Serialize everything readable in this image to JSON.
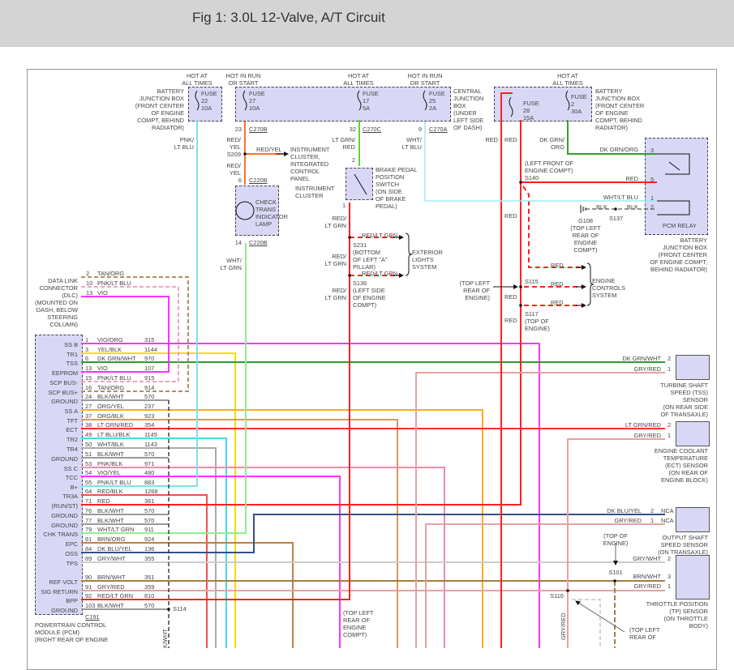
{
  "title": "Fig 1: 3.0L 12-Valve, A/T Circuit",
  "top": {
    "hot1": "HOT AT\nALL TIMES",
    "run1": "HOT IN RUN\nOR START",
    "hot2": "HOT AT\nALL TIMES",
    "run2": "HOT IN RUN\nOR START",
    "hot3": "HOT AT\nALL TIMES",
    "bjb_left": "BATTERY\nJUNCTION BOX\n(FRONT CENTER\nOF ENGINE\nCOMPT, BEHIND\nRADIATOR)",
    "fuse22": "FUSE\n22\n10A",
    "fuse27": "FUSE\n27\n10A",
    "fuse17": "FUSE\n17\n5A",
    "fuse25": "FUSE\n25\n2A",
    "fuse28": "FUSE\n28\n15A",
    "fuse2": "FUSE\n2\n30A",
    "cjb": "CENTRAL\nJUNCTION\nBOX\n(UNDER\nLEFT SIDE\nOF DASH)",
    "bjb_right": "BATTERY\nJUNCTION BOX\n(FRONT CENTER\nOF ENGINE\nCOMPT, BEHIND\nRADIATOR)"
  },
  "cluster": {
    "pin23": "23",
    "c270b": "C270B",
    "pnk_ltblu": "PNK/\nLT BLU",
    "redyel1": "RED/\nYEL",
    "s209": "S209",
    "redyel_h": "RED/YEL",
    "redyel2": "RED/\nYEL",
    "icp": "INSTRUMENT\nCLUSTER,\nINTEGRATED\nCONTROL\nPANEL",
    "pin6": "6",
    "c220b_1": "C220B",
    "ic": "INSTRUMENT\nCLUSTER",
    "lamp": "CHECK\nTRANS\nINDICATOR\nLAMP",
    "pin14": "14",
    "c220b_2": "C220B",
    "wht_ltgrn": "WHT/\nLT GRN"
  },
  "brake": {
    "pin32": "32",
    "c270c": "C270C",
    "ltgrn_red": "LT GRN/\nRED",
    "pin2": "2",
    "switch": "BRAKE PEDAL\nPOSITION\nSWITCH\n(ON SIDE\nOF BRAKE\nPEDAL)",
    "pin1": "1",
    "red_ltgrn1": "RED/\nLT GRN",
    "red_ltgrn_h1": "RED/LT GRN",
    "s231": "S231\n(BOTTOM\nOF LEFT \"A\"\nPILLAR)",
    "red_ltgrn2": "RED/\nLT GRN",
    "ext": "EXTERIOR\nLIGHTS\nSYSTEM",
    "red_ltgrn_h2": "RED/LT GRN",
    "s136": "S136\n(LEFT SIDE\nOF ENGINE\nCOMPT)",
    "red_ltgrn3": "RED/\nLT GRN"
  },
  "relay": {
    "pin9": "9",
    "c270a": "C270A",
    "wht_ltblu": "WHT/\nLT BLU",
    "red_a": "RED",
    "red_b": "RED",
    "dkgrn_org": "DK GRN/\nORG",
    "s140": "(LEFT FRONT OF\nENGINE COMPT)\nS140",
    "dkgrn_org_h": "DK GRN/ORG",
    "p3": "3",
    "red_h": "RED",
    "p5": "5",
    "red_c": "RED",
    "wht_ltblu_h": "WHT/LT BLU",
    "p1": "1",
    "blk1": "BLK",
    "blk2": "BLK",
    "p2": "2",
    "g108": "G108\n(TOP LEFT\nREAR OF\nENGINE\nCOMPT)",
    "s137": "S137",
    "pcm_relay": "PCM RELAY",
    "bjb": "BATTERY\nJUNCTION BOX\n(FRONT CENTER\nOF ENGINE COMPT,\nBEHIND RADIATOR)",
    "red_d": "RED",
    "tlr": "(TOP LEFT\nREAR OF\nENGINE)",
    "s115": "S115",
    "red_e": "RED",
    "ecs": "ENGINE\nCONTROLS\nSYSTEM",
    "red_f": "RED",
    "red_g": "RED",
    "s117": "S117\n(TOP OF\nENGINE)",
    "red_h2": "RED"
  },
  "sensors": {
    "tss_w2": "DK GRN/WHT",
    "tss_p2": "2",
    "tss_w1": "GRY/RED",
    "tss_p1": "1",
    "tss": "TURBINE SHAFT\nSPEED (TSS)\nSENSOR\n(ON REAR SIDE\nOF TRANSAXLE)",
    "ect_w2": "LT GRN/RED",
    "ect_p2": "2",
    "ect_w1": "GRY/RED",
    "ect_p1": "1",
    "ect": "ENGINE COOLANT\nTEMPERATURE\n(ECT) SENSOR\n(ON REAR OF\nENGINE BLOCK)",
    "oss_w2": "DK BLU/YEL",
    "oss_p2": "2",
    "oss_w1": "GRY/RED",
    "oss_p1": "1",
    "nca": "NCA",
    "oss": "OUTPUT SHAFT\nSPEED SENSOR\n(ON TRANSAXLE)",
    "top_engine": "(TOP OF\nENGINE)",
    "tp_w2": "GRY/WHT",
    "tp_p2": "2",
    "s101": "S101",
    "tp_w3": "BRN/WHT",
    "tp_p3": "3",
    "tp_w1": "GRY/RED",
    "tp_p1": "1",
    "s116": "S116",
    "tp": "THROTTLE POSITION\n(TP) SENSOR\n(ON THROTTLE\nBODY)",
    "tlr2": "(TOP LEFT\nREAR OF",
    "gryred_v": "GRY/RED"
  },
  "dlc": {
    "label": "DATA LINK\nCONNECTOR\n(DLC)\n(MOUNTED ON\nDASH, BELOW\nSTEERING\nCOLUMN)",
    "pins": [
      {
        "pin": "2",
        "color": "TAN/ORG"
      },
      {
        "pin": "10",
        "color": "PNK/LT BLU"
      },
      {
        "pin": "13",
        "color": "VIO"
      }
    ]
  },
  "pcm": {
    "connector": "C191",
    "label": "POWERTRAIN CONTROL\nMODULE (PCM)\n(RIGHT REAR OF ENGINE",
    "s114": "S114",
    "kwht": "K/WHT",
    "tlr_compt": "(TOP LEFT\nREAR OF\nENGINE\nCOMPT)",
    "pins": [
      {
        "name": "SS B",
        "pin": "1",
        "color": "VIO/ORG",
        "circuit": "315"
      },
      {
        "name": "TR1",
        "pin": "3",
        "color": "YEL/BLK",
        "circuit": "1144"
      },
      {
        "name": "TSS",
        "pin": "6",
        "color": "DK GRN/WHT",
        "circuit": "970"
      },
      {
        "name": "EEPROM",
        "pin": "13",
        "color": "VIO",
        "circuit": "107"
      },
      {
        "name": "SCP BUS-",
        "pin": "15",
        "color": "PNK/LT BLU",
        "circuit": "915"
      },
      {
        "name": "SCP BUS+",
        "pin": "16",
        "color": "TAN/ORG",
        "circuit": "914"
      },
      {
        "name": "GROUND",
        "pin": "24",
        "color": "BLK/WHT",
        "circuit": "570"
      },
      {
        "name": "SS A",
        "pin": "27",
        "color": "ORG/YEL",
        "circuit": "237"
      },
      {
        "name": "TFT",
        "pin": "37",
        "color": "ORG/BLK",
        "circuit": "923"
      },
      {
        "name": "ECT",
        "pin": "38",
        "color": "LT GRN/RED",
        "circuit": "354"
      },
      {
        "name": "TR2",
        "pin": "49",
        "color": "LT BLU/BLK",
        "circuit": "1145"
      },
      {
        "name": "TR4",
        "pin": "50",
        "color": "WHT/BLK",
        "circuit": "1143"
      },
      {
        "name": "GROUND",
        "pin": "51",
        "color": "BLK/WHT",
        "circuit": "570"
      },
      {
        "name": "SS C",
        "pin": "53",
        "color": "PNK/BLK",
        "circuit": "971"
      },
      {
        "name": "TCC",
        "pin": "54",
        "color": "VIO/YEL",
        "circuit": "480"
      },
      {
        "name": "B+",
        "pin": "55",
        "color": "PNK/LT BLU",
        "circuit": "883"
      },
      {
        "name": "TR3A",
        "pin": "64",
        "color": "RED/BLK",
        "circuit": "1268"
      },
      {
        "name": "(RUN/ST)",
        "pin": "71",
        "color": "RED",
        "circuit": "361"
      },
      {
        "name": "GROUND",
        "pin": "76",
        "color": "BLK/WHT",
        "circuit": "570"
      },
      {
        "name": "GROUND",
        "pin": "77",
        "color": "BLK/WHT",
        "circuit": "570"
      },
      {
        "name": "CHK TRANS",
        "pin": "79",
        "color": "WHT/LT GRN",
        "circuit": "911"
      },
      {
        "name": "EPC",
        "pin": "81",
        "color": "BRN/ORG",
        "circuit": "924"
      },
      {
        "name": "OSS",
        "pin": "84",
        "color": "DK BLU/YEL",
        "circuit": "136"
      },
      {
        "name": "TPS",
        "pin": "89",
        "color": "GRY/WHT",
        "circuit": "355"
      },
      {
        "name": "REF VOLT",
        "pin": "90",
        "color": "BRN/WHT",
        "circuit": "351"
      },
      {
        "name": "SIG RETURN",
        "pin": "91",
        "color": "GRY/RED",
        "circuit": "359"
      },
      {
        "name": "BPP",
        "pin": "92",
        "color": "RED/LT GRN",
        "circuit": "810"
      },
      {
        "name": "GROUND",
        "pin": "103",
        "color": "BLK/WHT",
        "circuit": "570"
      }
    ]
  },
  "colors": {
    "box_fill": "#d8d8f6",
    "header_bg": "#d4d4d4",
    "red": "#ff2020",
    "magenta": "#ff33ff",
    "cyan": "#40e0e0"
  }
}
